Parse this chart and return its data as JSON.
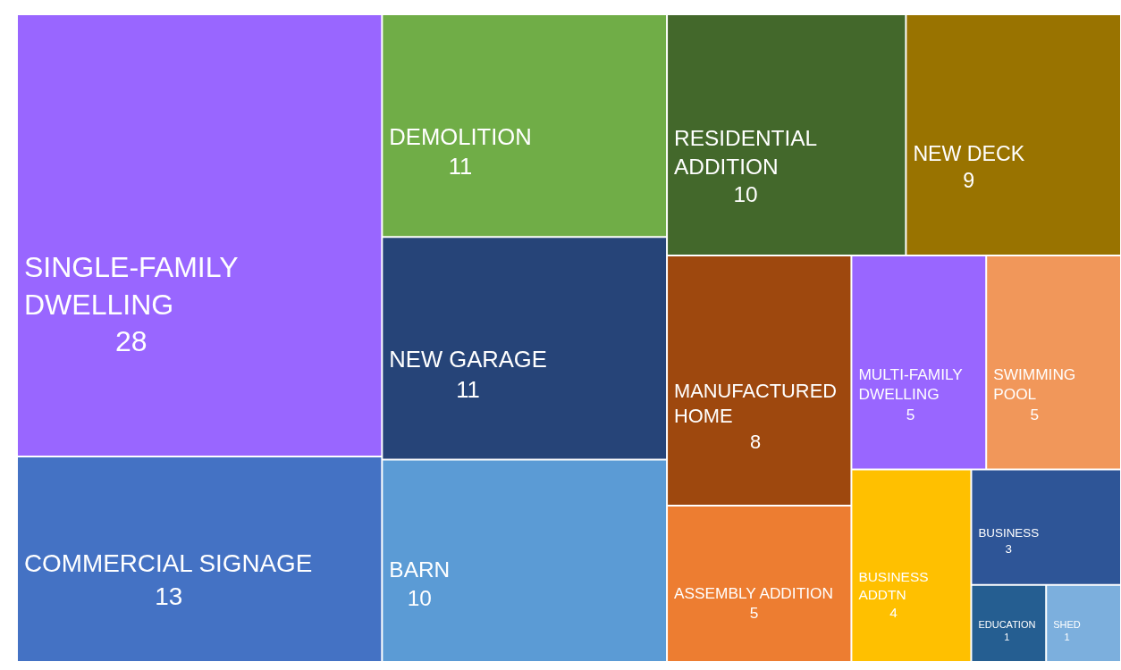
{
  "chart_data": {
    "type": "other",
    "categories": [
      "SINGLE-FAMILY DWELLING",
      "COMMERCIAL SIGNAGE",
      "DEMOLITION",
      "NEW GARAGE",
      "BARN",
      "RESIDENTIAL ADDITION",
      "NEW DECK",
      "MANUFACTURED HOME",
      "ASSEMBLY ADDITION",
      "MULTI-FAMILY DWELLING",
      "SWIMMING POOL",
      "BUSINESS ADDTN",
      "BUSINESS",
      "EDUCATION",
      "SHED"
    ],
    "values": [
      28,
      13,
      11,
      11,
      10,
      10,
      9,
      8,
      5,
      5,
      5,
      4,
      3,
      1,
      1
    ],
    "colors": [
      "#9966ff",
      "#4472c4",
      "#70ad47",
      "#264478",
      "#5b9bd5",
      "#43682b",
      "#997300",
      "#9e480e",
      "#ed7d31",
      "#9966ff",
      "#f1975a",
      "#ffc000",
      "#2e5597",
      "#255e91",
      "#7cafdd"
    ],
    "data_labels": true
  }
}
